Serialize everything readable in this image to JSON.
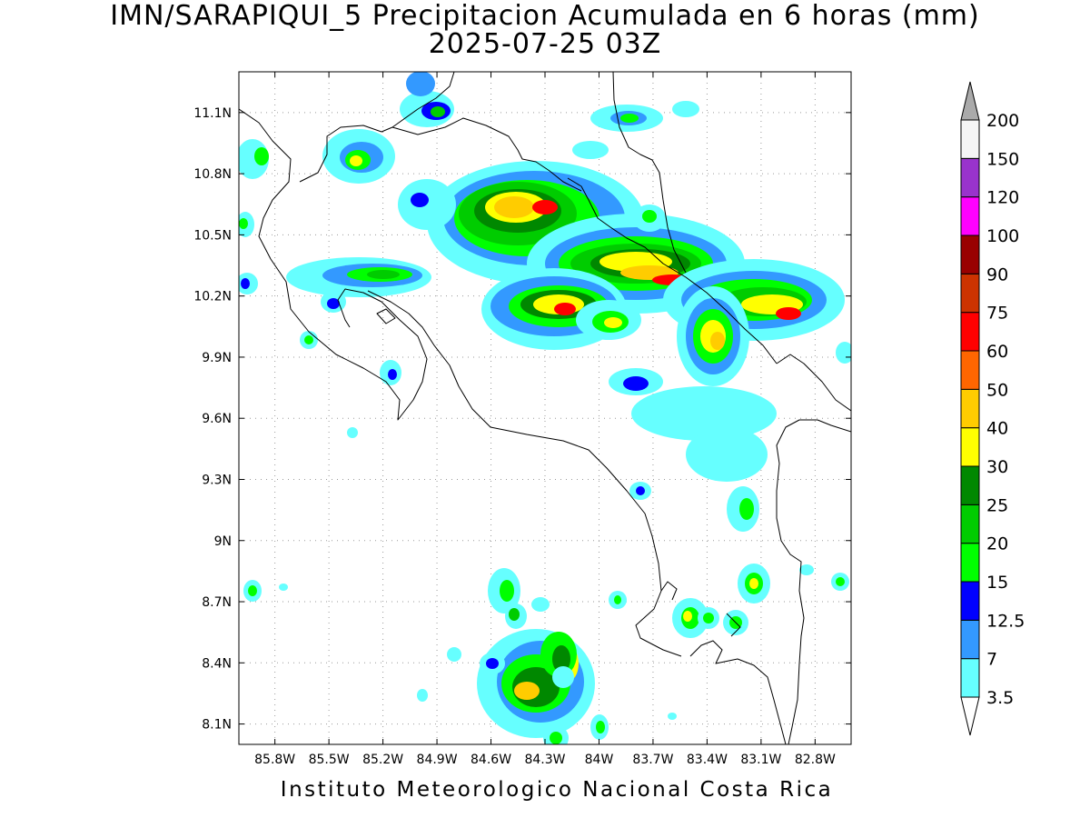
{
  "title": {
    "line1": "IMN/SARAPIQUI_5 Precipitacion Acumulada en 6 horas (mm)",
    "line2": "2025-07-25 03Z"
  },
  "footer": "Instituto Meteorologico Nacional Costa Rica",
  "map": {
    "lon_range": [
      -86.0,
      -82.6
    ],
    "lat_range": [
      8.0,
      11.3
    ],
    "grid": true,
    "lat_ticks": [
      {
        "value": 11.1,
        "label": "11.1N"
      },
      {
        "value": 10.8,
        "label": "10.8N"
      },
      {
        "value": 10.5,
        "label": "10.5N"
      },
      {
        "value": 10.2,
        "label": "10.2N"
      },
      {
        "value": 9.9,
        "label": "9.9N"
      },
      {
        "value": 9.6,
        "label": "9.6N"
      },
      {
        "value": 9.3,
        "label": "9.3N"
      },
      {
        "value": 9.0,
        "label": "9N"
      },
      {
        "value": 8.7,
        "label": "8.7N"
      },
      {
        "value": 8.4,
        "label": "8.4N"
      },
      {
        "value": 8.1,
        "label": "8.1N"
      }
    ],
    "lon_ticks": [
      {
        "value": -85.8,
        "label": "85.8W"
      },
      {
        "value": -85.5,
        "label": "85.5W"
      },
      {
        "value": -85.2,
        "label": "85.2W"
      },
      {
        "value": -84.9,
        "label": "84.9W"
      },
      {
        "value": -84.6,
        "label": "84.6W"
      },
      {
        "value": -84.3,
        "label": "84.3W"
      },
      {
        "value": -84.0,
        "label": "84W"
      },
      {
        "value": -83.7,
        "label": "83.7W"
      },
      {
        "value": -83.4,
        "label": "83.4W"
      },
      {
        "value": -83.1,
        "label": "83.1W"
      },
      {
        "value": -82.8,
        "label": "82.8W"
      }
    ]
  },
  "colorbar": {
    "levels": [
      "3.5",
      "7",
      "12.5",
      "15",
      "20",
      "25",
      "30",
      "40",
      "50",
      "60",
      "75",
      "90",
      "100",
      "120",
      "150",
      "200"
    ],
    "colors": [
      "#66ffff",
      "#3399ff",
      "#0000ff",
      "#00ff00",
      "#00cc00",
      "#008800",
      "#ffff00",
      "#ffcc00",
      "#ff6600",
      "#ff0000",
      "#cc3300",
      "#990000",
      "#ff00ff",
      "#9933cc",
      "#f5f5f5"
    ],
    "low_end_color": "#ffffff",
    "high_end_color": "#aaaaaa"
  }
}
